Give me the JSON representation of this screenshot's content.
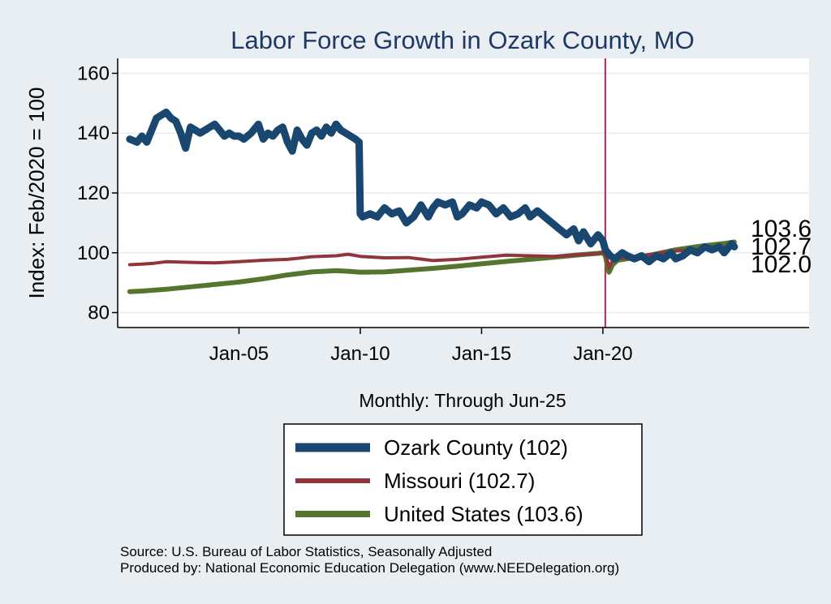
{
  "chart_data": {
    "type": "line",
    "title": "Labor Force Growth in Ozark  County, MO",
    "xlabel": "Monthly: Through Jun-25",
    "ylabel": "Index: Feb/2020 = 100",
    "xlim": [
      2000.0,
      2028.5
    ],
    "ylim": [
      75,
      165
    ],
    "y_ticks": [
      80,
      100,
      120,
      140,
      160
    ],
    "x_ticks": [
      {
        "value": 2005.0,
        "label": "Jan-05"
      },
      {
        "value": 2010.0,
        "label": "Jan-10"
      },
      {
        "value": 2015.0,
        "label": "Jan-15"
      },
      {
        "value": 2020.0,
        "label": "Jan-20"
      }
    ],
    "vline": {
      "x": 2020.1,
      "color": "#c0284a"
    },
    "grid": true,
    "legend_position": "bottom",
    "series": [
      {
        "name": "Ozark  County (102)",
        "color": "#1a476f",
        "width": 9,
        "x": [
          2000.5,
          2000.8,
          2001.0,
          2001.2,
          2001.4,
          2001.6,
          2001.8,
          2002.0,
          2002.2,
          2002.4,
          2002.6,
          2002.8,
          2003.0,
          2003.2,
          2003.4,
          2003.6,
          2003.8,
          2004.0,
          2004.2,
          2004.4,
          2004.6,
          2004.8,
          2005.0,
          2005.2,
          2005.5,
          2005.8,
          2006.0,
          2006.2,
          2006.4,
          2006.6,
          2006.8,
          2007.0,
          2007.2,
          2007.4,
          2007.6,
          2007.8,
          2008.0,
          2008.2,
          2008.4,
          2008.6,
          2008.8,
          2009.0,
          2009.2,
          2009.4,
          2009.6,
          2009.8,
          2009.95,
          2010.0,
          2010.1,
          2010.4,
          2010.7,
          2011.0,
          2011.3,
          2011.6,
          2011.9,
          2012.2,
          2012.5,
          2012.8,
          2013.0,
          2013.2,
          2013.5,
          2013.8,
          2014.0,
          2014.2,
          2014.5,
          2014.8,
          2015.0,
          2015.3,
          2015.6,
          2015.9,
          2016.2,
          2016.5,
          2016.8,
          2017.0,
          2017.3,
          2017.6,
          2017.9,
          2018.2,
          2018.5,
          2018.8,
          2019.0,
          2019.2,
          2019.5,
          2019.8,
          2020.0,
          2020.1,
          2020.3,
          2020.5,
          2020.8,
          2021.0,
          2021.3,
          2021.6,
          2021.9,
          2022.2,
          2022.5,
          2022.8,
          2023.0,
          2023.3,
          2023.6,
          2023.9,
          2024.2,
          2024.5,
          2024.8,
          2025.0,
          2025.3,
          2025.42
        ],
        "y": [
          138,
          137,
          139,
          137,
          141,
          145,
          146,
          147,
          145,
          144,
          140,
          135,
          142,
          141,
          140,
          141,
          142,
          143,
          141,
          139,
          140,
          139,
          139,
          138,
          140,
          143,
          138,
          140,
          139,
          141,
          142,
          137,
          134,
          141,
          138,
          136,
          140,
          141,
          139,
          142,
          140,
          143,
          141,
          140,
          139,
          138,
          137,
          113,
          112,
          113,
          112,
          115,
          113,
          114,
          110,
          112,
          116,
          112,
          115,
          117,
          116,
          117,
          112,
          113,
          116,
          115,
          117,
          116,
          113,
          115,
          112,
          113,
          115,
          112,
          114,
          112,
          110,
          108,
          106,
          108,
          104,
          107,
          103,
          106,
          104,
          101,
          99,
          98,
          100,
          99,
          98,
          99,
          97,
          99,
          98,
          100,
          98,
          99,
          101,
          100,
          102,
          101,
          102,
          100,
          103,
          102
        ]
      },
      {
        "name": "Missouri (102.7)",
        "color": "#90353b",
        "width": 4,
        "x": [
          2000.5,
          2001.0,
          2001.5,
          2002.0,
          2003.0,
          2004.0,
          2005.0,
          2006.0,
          2007.0,
          2007.5,
          2008.0,
          2009.0,
          2009.5,
          2010.0,
          2011.0,
          2012.0,
          2013.0,
          2014.0,
          2015.0,
          2016.0,
          2017.0,
          2018.0,
          2019.0,
          2019.8,
          2020.0,
          2020.1,
          2020.2,
          2020.25,
          2020.4,
          2020.6,
          2021.0,
          2022.0,
          2023.0,
          2024.0,
          2025.0,
          2025.42
        ],
        "y": [
          96,
          96.2,
          96.5,
          97,
          96.8,
          96.6,
          97,
          97.5,
          97.8,
          98.2,
          98.7,
          99,
          99.5,
          98.8,
          98.3,
          98.4,
          97.4,
          97.8,
          98.5,
          99.2,
          99,
          98.8,
          99.3,
          99.8,
          100,
          99.5,
          97,
          95,
          97.5,
          98.2,
          98.3,
          99.5,
          100.6,
          101.2,
          101.8,
          102.7
        ]
      },
      {
        "name": "United States (103.6)",
        "color": "#55752f",
        "width": 6,
        "x": [
          2000.5,
          2001.0,
          2002.0,
          2003.0,
          2004.0,
          2005.0,
          2006.0,
          2007.0,
          2008.0,
          2009.0,
          2009.5,
          2010.0,
          2011.0,
          2012.0,
          2013.0,
          2014.0,
          2015.0,
          2016.0,
          2017.0,
          2018.0,
          2019.0,
          2019.8,
          2020.0,
          2020.1,
          2020.2,
          2020.25,
          2020.4,
          2020.6,
          2021.0,
          2022.0,
          2023.0,
          2024.0,
          2025.0,
          2025.42
        ],
        "y": [
          87,
          87.2,
          87.8,
          88.6,
          89.4,
          90.2,
          91.3,
          92.6,
          93.6,
          94,
          93.8,
          93.5,
          93.6,
          94.2,
          94.8,
          95.5,
          96.3,
          97.1,
          97.8,
          98.5,
          99.3,
          99.8,
          100,
          99,
          95,
          93.5,
          96,
          97.5,
          98,
          99.3,
          101,
          102.2,
          103.1,
          103.6
        ]
      }
    ],
    "end_labels": [
      "103.6",
      "102.7",
      "102.0"
    ]
  },
  "source": {
    "line1": "Source: U.S. Bureau of Labor Statistics, Seasonally Adjusted",
    "line2": "Produced by: National Economic Education Delegation (www.NEEDelegation.org)"
  }
}
